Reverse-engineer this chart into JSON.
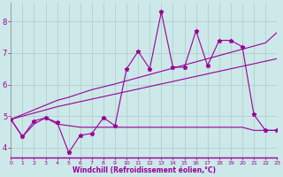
{
  "xlabel": "Windchill (Refroidissement éolien,°C)",
  "background_color": "#cce8e8",
  "grid_color": "#aacccc",
  "line_color": "#990099",
  "x_data": [
    0,
    1,
    2,
    3,
    4,
    5,
    6,
    7,
    8,
    9,
    10,
    11,
    12,
    13,
    14,
    15,
    16,
    17,
    18,
    19,
    20,
    21,
    22,
    23
  ],
  "series_main": [
    4.9,
    4.35,
    4.85,
    4.95,
    4.8,
    3.85,
    4.4,
    4.45,
    4.95,
    4.7,
    6.5,
    7.05,
    6.5,
    8.3,
    6.55,
    6.55,
    7.7,
    6.6,
    7.4,
    7.4,
    7.2,
    5.05,
    4.55,
    4.55
  ],
  "series_flat": [
    4.9,
    4.35,
    4.75,
    4.95,
    4.75,
    4.7,
    4.65,
    4.65,
    4.65,
    4.65,
    4.65,
    4.65,
    4.65,
    4.65,
    4.65,
    4.65,
    4.65,
    4.65,
    4.65,
    4.65,
    4.65,
    4.55,
    4.55,
    4.55
  ],
  "regression1": [
    4.9,
    5.05,
    5.2,
    5.35,
    5.5,
    5.6,
    5.72,
    5.84,
    5.93,
    6.02,
    6.12,
    6.22,
    6.32,
    6.42,
    6.52,
    6.62,
    6.72,
    6.82,
    6.92,
    7.02,
    7.12,
    7.22,
    7.32,
    7.65
  ],
  "regression2": [
    4.9,
    5.0,
    5.1,
    5.2,
    5.3,
    5.38,
    5.46,
    5.54,
    5.62,
    5.7,
    5.78,
    5.86,
    5.94,
    6.02,
    6.1,
    6.18,
    6.26,
    6.34,
    6.42,
    6.5,
    6.58,
    6.66,
    6.74,
    6.82
  ],
  "ylim": [
    3.7,
    8.6
  ],
  "xlim": [
    0,
    23
  ],
  "yticks": [
    4,
    5,
    6,
    7,
    8
  ],
  "xticks": [
    0,
    1,
    2,
    3,
    4,
    5,
    6,
    7,
    8,
    9,
    10,
    11,
    12,
    13,
    14,
    15,
    16,
    17,
    18,
    19,
    20,
    21,
    22,
    23
  ],
  "xtick_labels": [
    "0",
    "1",
    "2",
    "3",
    "4",
    "5",
    "6",
    "7",
    "8",
    "9",
    "10",
    "11",
    "12",
    "13",
    "14",
    "15",
    "16",
    "17",
    "18",
    "19",
    "20",
    "21",
    "22",
    "23"
  ]
}
